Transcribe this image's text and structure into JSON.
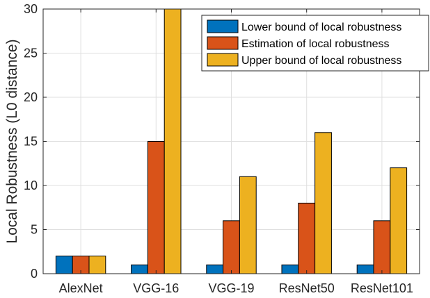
{
  "chart_data": {
    "type": "bar",
    "title": "",
    "xlabel": "",
    "ylabel": "Local Robustness (L0 distance)",
    "categories": [
      "AlexNet",
      "VGG-16",
      "VGG-19",
      "ResNet50",
      "ResNet101"
    ],
    "series": [
      {
        "name": "Lower bound of local robustness",
        "color": "#0072bd",
        "values": [
          2,
          1,
          1,
          1,
          1
        ]
      },
      {
        "name": "Estimation of local robustness",
        "color": "#d95319",
        "values": [
          2,
          15,
          6,
          8,
          6
        ]
      },
      {
        "name": "Upper bound of local robustness",
        "color": "#edb120",
        "values": [
          2,
          30,
          11,
          16,
          12
        ]
      }
    ],
    "ylim": [
      0,
      30
    ],
    "yticks": [
      0,
      5,
      10,
      15,
      20,
      25,
      30
    ],
    "grid": true,
    "legend_position": "top-right"
  }
}
